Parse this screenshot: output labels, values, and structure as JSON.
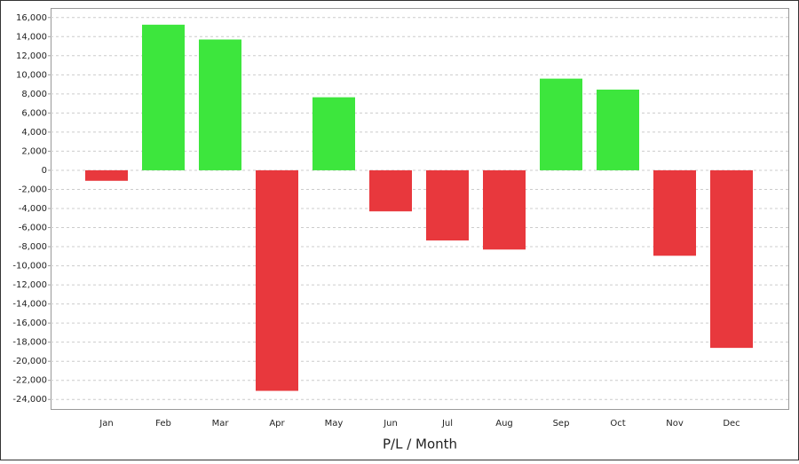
{
  "chart_data": {
    "type": "bar",
    "x_label": "P/L / Month",
    "categories": [
      "Jan",
      "Feb",
      "Mar",
      "Apr",
      "May",
      "Jun",
      "Jul",
      "Aug",
      "Sep",
      "Oct",
      "Nov",
      "Dec"
    ],
    "values": [
      -1100,
      15250,
      13700,
      -23100,
      7650,
      -4300,
      -7350,
      -8300,
      9600,
      8450,
      -8950,
      -18600
    ],
    "color_positive": "#3de63d",
    "color_negative": "#e8383d",
    "ylim": [
      -25000,
      17000
    ],
    "yticks": [
      {
        "value": 16000,
        "label": "16,000"
      },
      {
        "value": 14000,
        "label": "14,000"
      },
      {
        "value": 12000,
        "label": "12,000"
      },
      {
        "value": 10000,
        "label": "10,000"
      },
      {
        "value": 8000,
        "label": "8,000"
      },
      {
        "value": 6000,
        "label": "6,000"
      },
      {
        "value": 4000,
        "label": "4,000"
      },
      {
        "value": 2000,
        "label": "2,000"
      },
      0,
      {
        "value": -2000,
        "label": "-2,000"
      },
      {
        "value": -4000,
        "label": "-4,000"
      },
      {
        "value": -6000,
        "label": "-6,000"
      },
      {
        "value": -8000,
        "label": "-8,000"
      },
      {
        "value": -10000,
        "label": "-10,000"
      },
      {
        "value": -12000,
        "label": "-12,000"
      },
      {
        "value": -14000,
        "label": "-14,000"
      },
      {
        "value": -16000,
        "label": "-16,000"
      },
      {
        "value": -18000,
        "label": "-18,000"
      },
      {
        "value": -20000,
        "label": "-20,000"
      },
      {
        "value": -22000,
        "label": "-22,000"
      },
      {
        "value": -24000,
        "label": "-24,000"
      }
    ],
    "grid": true
  }
}
